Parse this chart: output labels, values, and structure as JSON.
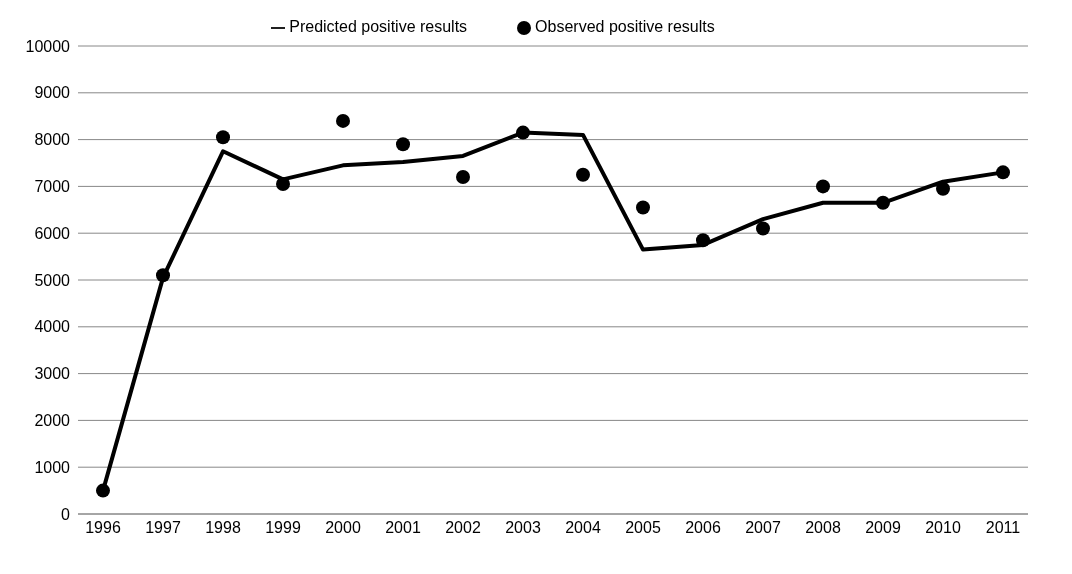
{
  "chart_data": {
    "type": "line",
    "categories": [
      "1996",
      "1997",
      "1998",
      "1999",
      "2000",
      "2001",
      "2002",
      "2003",
      "2004",
      "2005",
      "2006",
      "2007",
      "2008",
      "2009",
      "2010",
      "2011"
    ],
    "series": [
      {
        "name": "Predicted positive results",
        "color": "#000000",
        "marker": "none",
        "values": [
          500,
          5050,
          7750,
          7150,
          7450,
          7520,
          7650,
          8150,
          8100,
          5650,
          5750,
          6300,
          6650,
          6650,
          7100,
          7300
        ]
      },
      {
        "name": "Observed positive results",
        "type": "scatter",
        "color": "#000000",
        "marker": "circle",
        "values": [
          500,
          5100,
          8050,
          7050,
          8400,
          7900,
          7200,
          8150,
          7250,
          6550,
          5850,
          6100,
          7000,
          6650,
          6950,
          7300
        ]
      }
    ],
    "ylim": [
      0,
      10000
    ],
    "yticks": [
      0,
      1000,
      2000,
      3000,
      4000,
      5000,
      6000,
      7000,
      8000,
      9000,
      10000
    ],
    "grid": "y",
    "legend": "top"
  }
}
